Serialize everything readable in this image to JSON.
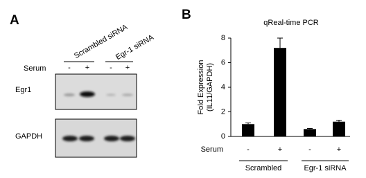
{
  "panel_a": {
    "label": "A",
    "groups": [
      "Scrambled siRNA",
      "Egr-1 siRNA"
    ],
    "serum_label": "Serum",
    "serum": [
      "-",
      "+",
      "-",
      "+"
    ],
    "blots": [
      "Egr1",
      "GAPDH"
    ]
  },
  "chart_data": {
    "type": "bar",
    "panel_label": "B",
    "title": "qReal-time PCR",
    "ylabel": [
      "Fold Expression",
      "(IL11/GAPDH)"
    ],
    "row_label": "Serum",
    "categories": [
      "-",
      "+",
      "-",
      "+"
    ],
    "groups": [
      "Scrambled",
      "Egr-1 siRNA"
    ],
    "values": [
      1.0,
      7.2,
      0.6,
      1.2
    ],
    "errors": [
      0.1,
      0.8,
      0.05,
      0.12
    ],
    "color": "#000000",
    "ylim": [
      0,
      8
    ],
    "yticks": [
      0,
      2,
      4,
      6,
      8
    ]
  }
}
